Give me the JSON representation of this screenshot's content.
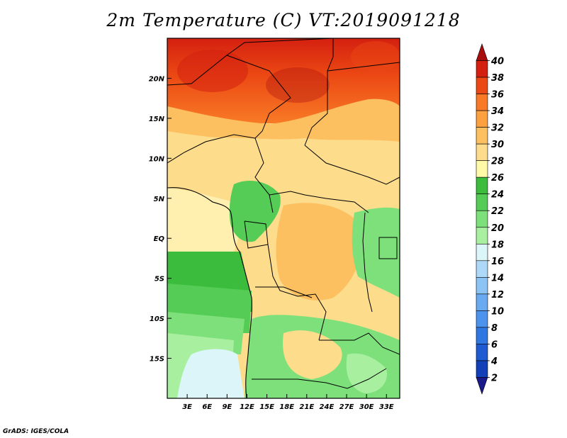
{
  "title": "2m Temperature (C) VT:2019091218",
  "footer": "GrADS: IGES/COLA",
  "map": {
    "variable": "2m Temperature",
    "units": "C",
    "lon_range": [
      0,
      35
    ],
    "lat_range": [
      -20,
      25
    ],
    "x_ticks": [
      "3E",
      "6E",
      "9E",
      "12E",
      "15E",
      "18E",
      "21E",
      "24E",
      "27E",
      "30E",
      "33E"
    ],
    "x_tick_values": [
      3,
      6,
      9,
      12,
      15,
      18,
      21,
      24,
      27,
      30,
      33
    ],
    "y_ticks": [
      "20N",
      "15N",
      "10N",
      "5N",
      "EQ",
      "5S",
      "10S",
      "15S"
    ],
    "y_tick_values": [
      20,
      15,
      10,
      5,
      0,
      -5,
      -10,
      -15
    ]
  },
  "colorbar": {
    "levels": [
      "2",
      "4",
      "6",
      "8",
      "10",
      "12",
      "14",
      "16",
      "18",
      "20",
      "22",
      "24",
      "26",
      "28",
      "30",
      "32",
      "34",
      "36",
      "38",
      "40"
    ],
    "colors": [
      "#1a1a8a",
      "#1240b8",
      "#1e5ad0",
      "#2f78e2",
      "#4b93ec",
      "#6aaaf0",
      "#8cc3f5",
      "#aed8f8",
      "#dcf5f8",
      "#a8f0a0",
      "#7de07a",
      "#55cc55",
      "#3cbc3c",
      "#fffaa8",
      "#fddc8c",
      "#fcc060",
      "#fca040",
      "#f87a26",
      "#ec4a14",
      "#d42010",
      "#a80e0e"
    ]
  }
}
